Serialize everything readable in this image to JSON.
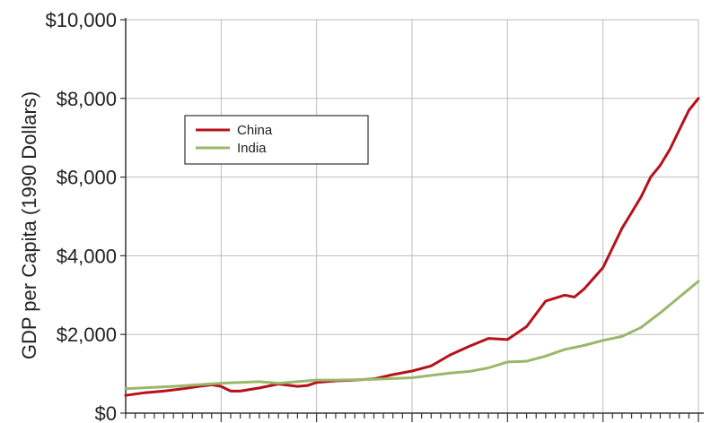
{
  "chart_data": {
    "type": "line",
    "title": "",
    "xlabel": "",
    "ylabel": "GDP per Capita (1990 Dollars)",
    "ylim": [
      0,
      10000
    ],
    "y_ticks": [
      {
        "value": 0,
        "label": "$0"
      },
      {
        "value": 2000,
        "label": "$2,000"
      },
      {
        "value": 4000,
        "label": "$4,000"
      },
      {
        "value": 6000,
        "label": "$6,000"
      },
      {
        "value": 8000,
        "label": "$8,000"
      },
      {
        "value": 10000,
        "label": "$10,000"
      }
    ],
    "xlim": [
      1950,
      2010
    ],
    "x_gridlines": [
      1960,
      1970,
      1980,
      1990,
      2000,
      2010
    ],
    "x_minor_step": 1,
    "grid": true,
    "legend_position": "top-left",
    "colors": {
      "China": "#b5121b",
      "India": "#9ab86a"
    },
    "series": [
      {
        "name": "China",
        "x": [
          1950,
          1952,
          1954,
          1956,
          1958,
          1959,
          1960,
          1961,
          1962,
          1964,
          1966,
          1968,
          1969,
          1970,
          1972,
          1974,
          1976,
          1978,
          1980,
          1982,
          1984,
          1986,
          1988,
          1990,
          1992,
          1994,
          1996,
          1997,
          1998,
          2000,
          2002,
          2003,
          2004,
          2005,
          2006,
          2007,
          2008,
          2009,
          2010
        ],
        "values": [
          450,
          520,
          560,
          620,
          690,
          720,
          680,
          560,
          560,
          640,
          740,
          680,
          700,
          780,
          820,
          840,
          870,
          980,
          1070,
          1200,
          1480,
          1700,
          1900,
          1870,
          2200,
          2850,
          3000,
          2950,
          3150,
          3700,
          4700,
          5100,
          5500,
          6000,
          6300,
          6700,
          7200,
          7700,
          8000
        ]
      },
      {
        "name": "India",
        "x": [
          1950,
          1955,
          1960,
          1962,
          1964,
          1966,
          1968,
          1970,
          1972,
          1974,
          1976,
          1978,
          1980,
          1982,
          1984,
          1986,
          1988,
          1990,
          1992,
          1994,
          1996,
          1998,
          2000,
          2002,
          2004,
          2006,
          2008,
          2010
        ],
        "values": [
          620,
          680,
          760,
          780,
          800,
          760,
          800,
          840,
          840,
          850,
          860,
          880,
          900,
          960,
          1020,
          1060,
          1150,
          1300,
          1320,
          1450,
          1620,
          1720,
          1850,
          1950,
          2180,
          2550,
          2950,
          3350
        ]
      }
    ]
  }
}
